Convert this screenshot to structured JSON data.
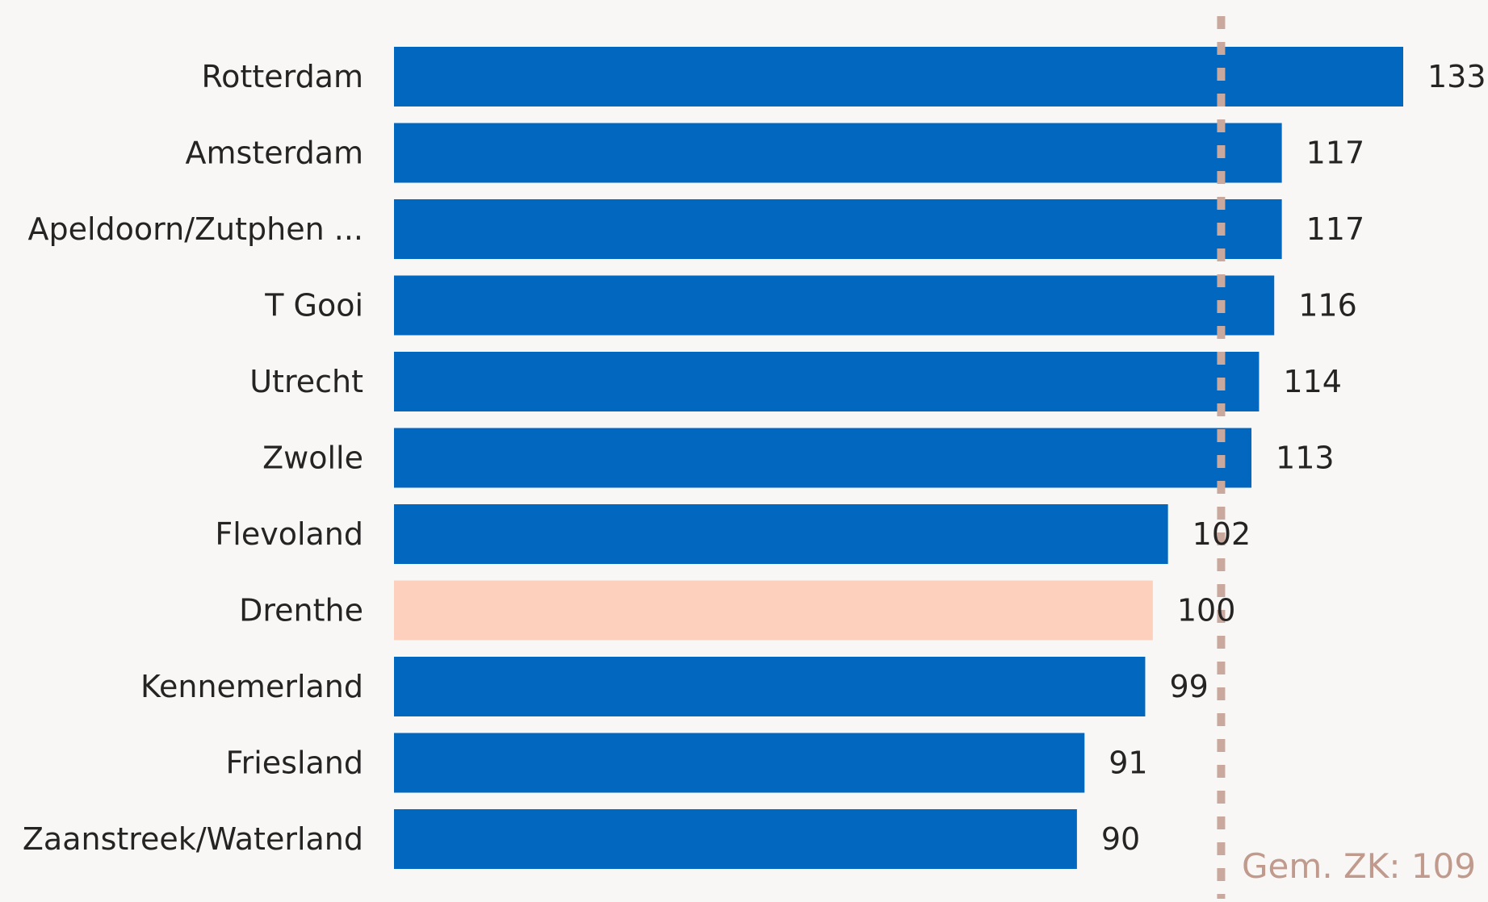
{
  "chart_data": {
    "type": "bar",
    "orientation": "horizontal",
    "title": "",
    "xlabel": "",
    "ylabel": "",
    "categories": [
      "Rotterdam",
      "Amsterdam",
      "Apeldoorn/Zutphen ...",
      "T Gooi",
      "Utrecht",
      "Zwolle",
      "Flevoland",
      "Drenthe",
      "Kennemerland",
      "Friesland",
      "Zaanstreek/Waterland"
    ],
    "values": [
      133,
      117,
      117,
      116,
      114,
      113,
      102,
      100,
      99,
      91,
      90
    ],
    "data_labels": [
      "133",
      "117",
      "117",
      "116",
      "114",
      "113",
      "102",
      "100",
      "99",
      "91",
      "90"
    ],
    "highlighted_category": "Drenthe",
    "xlim": [
      0,
      133
    ],
    "grid": false,
    "legend": "none",
    "colors": {
      "bar": "#0167bf",
      "highlight": "#fdd0bd",
      "reference_line": "#c9a99e",
      "label_text": "#252423",
      "reference_text": "#c09a8c",
      "background": "#f9f7f6"
    },
    "reference_line": {
      "value": 109,
      "label": "Gem. ZK: 109",
      "style": "dashed"
    }
  }
}
